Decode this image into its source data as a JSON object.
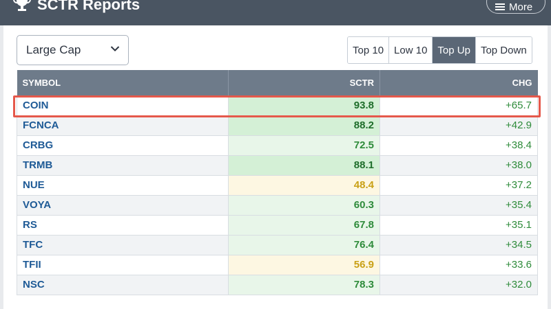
{
  "header": {
    "title": "SCTR Reports",
    "more_label": "More"
  },
  "controls": {
    "cap_select": "Large Cap",
    "tabs": [
      {
        "label": "Top 10",
        "active": false
      },
      {
        "label": "Low 10",
        "active": false
      },
      {
        "label": "Top Up",
        "active": true
      },
      {
        "label": "Top Down",
        "active": false
      }
    ]
  },
  "table": {
    "columns": [
      "SYMBOL",
      "SCTR",
      "CHG"
    ],
    "rows": [
      {
        "symbol": "COIN",
        "sctr": "93.8",
        "chg": "+65.7"
      },
      {
        "symbol": "FCNCA",
        "sctr": "88.2",
        "chg": "+42.9"
      },
      {
        "symbol": "CRBG",
        "sctr": "72.5",
        "chg": "+38.4"
      },
      {
        "symbol": "TRMB",
        "sctr": "88.1",
        "chg": "+38.0"
      },
      {
        "symbol": "NUE",
        "sctr": "48.4",
        "chg": "+37.2"
      },
      {
        "symbol": "VOYA",
        "sctr": "60.3",
        "chg": "+35.4"
      },
      {
        "symbol": "RS",
        "sctr": "67.8",
        "chg": "+35.1"
      },
      {
        "symbol": "TFC",
        "sctr": "76.4",
        "chg": "+34.5"
      },
      {
        "symbol": "TFII",
        "sctr": "56.9",
        "chg": "+33.6"
      },
      {
        "symbol": "NSC",
        "sctr": "78.3",
        "chg": "+32.0"
      }
    ]
  },
  "colors": {
    "sctr_high_bg": "#d4f0d6",
    "sctr_mid_bg": "#e8f6e9",
    "sctr_low_bg": "#fdf7e2",
    "sctr_high_text": "#1f6e2b",
    "sctr_mid_text": "#2e8b3a",
    "sctr_low_text": "#c9a016",
    "highlight": "#e5584b"
  },
  "highlighted_row": 0
}
